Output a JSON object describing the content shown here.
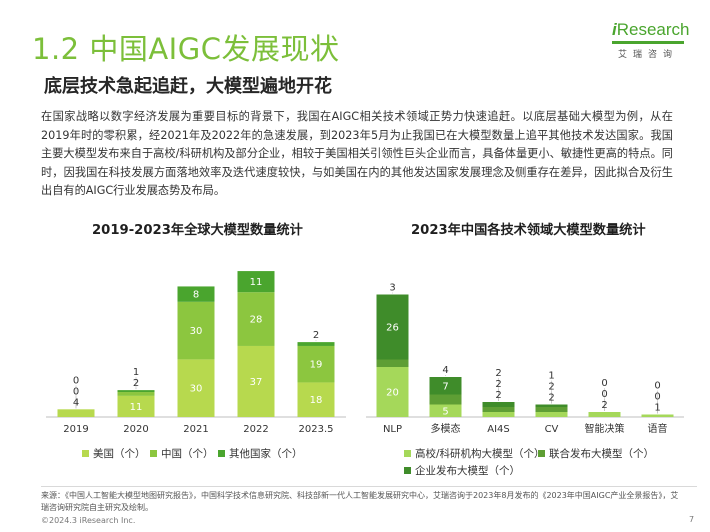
{
  "header": {
    "title": "1.2 中国AIGC发展现状",
    "subtitle": "底层技术急起追赶，大模型遍地开花"
  },
  "logo": {
    "word_i": "i",
    "word_rest": "Research",
    "cn": "艾瑞咨询"
  },
  "body_text": "在国家战略以数字经济发展为重要目标的背景下，我国在AIGC相关技术领域正势力快速追赶。以底层基础大模型为例，从在2019年时的零积累，经2021年及2022年的急速发展，到2023年5月为止我国已在大模型数量上追平其他技术发达国家。我国主要大模型发布来自于高校/科研机构及部分企业，相较于美国相关引领性巨头企业而言，具备体量更小、敏捷性更高的特点。同时，因我国在科技发展方面落地效率及迭代速度较快，与如美国在内的其他发达国家发展理念及侧重存在差异，因此拟合及衍生出自有的AIGC行业发展态势及布局。",
  "colors": {
    "brand": "#7cbf3a",
    "us": "#b7d94e",
    "china": "#8cc63f",
    "other": "#4aa52e",
    "univ": "#a5d85a",
    "joint": "#5e9e34",
    "enterprise": "#3f8c2a"
  },
  "chart_data": [
    {
      "type": "bar",
      "title": "2019-2023年全球大模型数量统计",
      "categories": [
        "2019",
        "2020",
        "2021",
        "2022",
        "2023.5"
      ],
      "series": [
        {
          "name": "美国（个）",
          "values": [
            4,
            11,
            30,
            37,
            18
          ]
        },
        {
          "name": "中国（个）",
          "values": [
            0,
            2,
            30,
            28,
            19
          ]
        },
        {
          "name": "其他国家（个）",
          "values": [
            0,
            1,
            8,
            11,
            2
          ]
        }
      ],
      "stacked": true,
      "legend": "bottom"
    },
    {
      "type": "bar",
      "title": "2023年中国各技术领域大模型数量统计",
      "categories": [
        "NLP",
        "多模态",
        "AI4S",
        "CV",
        "智能决策",
        "语音"
      ],
      "series": [
        {
          "name": "高校/科研机构大模型（个）",
          "values": [
            20,
            5,
            2,
            2,
            2,
            1
          ]
        },
        {
          "name": "联合发布大模型（个）",
          "values": [
            3,
            4,
            2,
            2,
            0,
            0
          ]
        },
        {
          "name": "企业发布大模型（个）",
          "values": [
            26,
            7,
            2,
            1,
            0,
            0
          ]
        }
      ],
      "stacked": true,
      "legend": "bottom"
    }
  ],
  "footer": {
    "source": "来源：《中国人工智能大模型地图研究报告》，中国科学技术信息研究院、科技部新一代人工智能发展研究中心，艾瑞咨询于2023年8月发布的《2023年中国AIGC产业全景报告》，艾瑞咨询研究院自主研究及绘制。",
    "copyright": "©2024.3 iResearch Inc.",
    "page": "7"
  }
}
